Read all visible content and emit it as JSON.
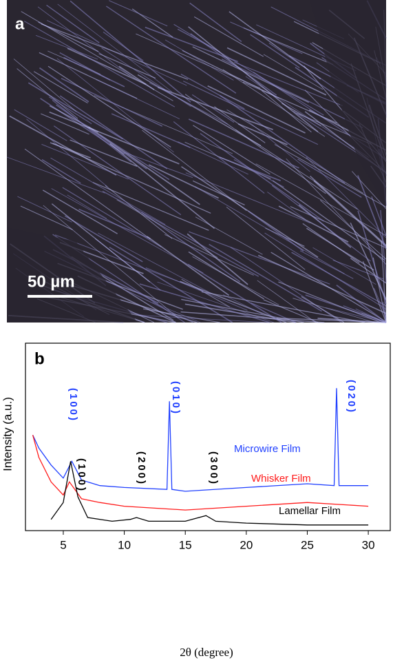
{
  "panel_a": {
    "label": "a",
    "scale_bar": "50 µm"
  },
  "chart_data": {
    "type": "line",
    "panel_label": "b",
    "xlabel": "2θ (degree)",
    "ylabel": "Intensity (a.u.)",
    "xlim": [
      1.9,
      31.8
    ],
    "xticks": [
      5,
      10,
      15,
      20,
      25,
      30
    ],
    "ylim": [
      0,
      100
    ],
    "series": [
      {
        "name": "Microwire Film",
        "color": "#1f3fff",
        "x": [
          2.5,
          3,
          4,
          5,
          5.7,
          6.5,
          8,
          10,
          13.5,
          13.7,
          13.9,
          15,
          20,
          25,
          27.2,
          27.4,
          27.6,
          30
        ],
        "values": [
          51,
          44,
          35,
          28,
          37,
          27,
          24,
          23,
          22,
          69,
          22,
          21,
          23,
          25,
          24,
          76,
          24,
          24
        ]
      },
      {
        "name": "Whisker Film",
        "color": "#ff1a1a",
        "x": [
          2.5,
          3,
          4,
          5,
          5.5,
          6.5,
          8,
          10,
          15,
          20,
          25,
          30
        ],
        "values": [
          51,
          39,
          26,
          19,
          26,
          17,
          15,
          13,
          11,
          13,
          15,
          13
        ]
      },
      {
        "name": "Lamellar Film",
        "color": "#000000",
        "x": [
          4,
          5,
          5.6,
          6.2,
          7,
          9,
          10.5,
          11,
          12,
          15,
          16.7,
          17.5,
          20,
          25,
          30
        ],
        "values": [
          6,
          15,
          37,
          18,
          7,
          5,
          6,
          7,
          5,
          5,
          8,
          5,
          4,
          3,
          3
        ]
      }
    ],
    "annotations": [
      "(100)",
      "(010)",
      "(020)",
      "(100)",
      "(200)",
      "(300)"
    ]
  }
}
